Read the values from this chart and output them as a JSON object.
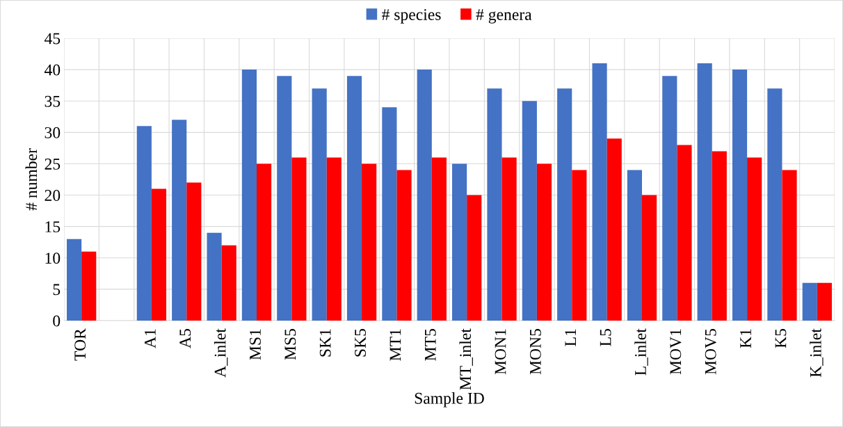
{
  "chart_data": {
    "type": "bar",
    "xlabel": "Sample ID",
    "ylabel": "# number",
    "categories": [
      "TOR",
      null,
      "A1",
      "A5",
      "A_inlet",
      "MS1",
      "MS5",
      "SK1",
      "SK5",
      "MT1",
      "MT5",
      "MT_inlet",
      "MON1",
      "MON5",
      "L1",
      "L5",
      "L_inlet",
      "MOV1",
      "MOV5",
      "K1",
      "K5",
      "K_inlet"
    ],
    "series": [
      {
        "name": "# species",
        "color": "#4472c4",
        "values": [
          13,
          null,
          31,
          32,
          14,
          40,
          39,
          37,
          39,
          34,
          40,
          25,
          37,
          35,
          37,
          41,
          24,
          39,
          41,
          40,
          37,
          6
        ]
      },
      {
        "name": "# genera",
        "color": "#ff0000",
        "values": [
          11,
          null,
          21,
          22,
          12,
          25,
          26,
          26,
          25,
          24,
          26,
          20,
          26,
          25,
          24,
          29,
          20,
          28,
          27,
          26,
          24,
          6
        ]
      }
    ],
    "ylim": [
      0,
      45
    ],
    "yticks": [
      0,
      5,
      10,
      15,
      20,
      25,
      30,
      35,
      40,
      45
    ],
    "grid": true,
    "legend": "top"
  }
}
